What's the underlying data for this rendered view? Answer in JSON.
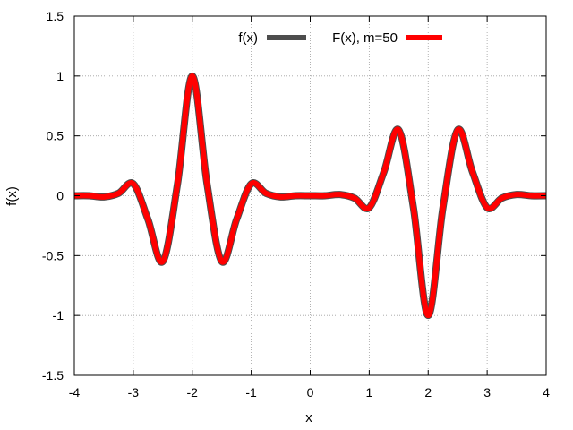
{
  "chart_data": {
    "type": "line",
    "xlabel": "x",
    "ylabel": "f(x)",
    "xlim": [
      -4,
      4
    ],
    "ylim": [
      -1.5,
      1.5
    ],
    "xticks": [
      -4,
      -3,
      -2,
      -1,
      0,
      1,
      2,
      3,
      4
    ],
    "yticks": [
      -1.5,
      -1,
      -0.5,
      0,
      0.5,
      1,
      1.5
    ],
    "xtick_labels": [
      "-4",
      "-3",
      "-2",
      "-1",
      "0",
      "1",
      "2",
      "3",
      "4"
    ],
    "ytick_labels": [
      "-1.5",
      "-1",
      "-0.5",
      "0",
      "0.5",
      "1",
      "1.5"
    ],
    "grid": true,
    "legend_position": "top-right",
    "x": [
      -4,
      -3.75,
      -3.5,
      -3.25,
      -3,
      -2.75,
      -2.5,
      -2.25,
      -2,
      -1.75,
      -1.5,
      -1.25,
      -1,
      -0.75,
      -0.5,
      -0.25,
      0,
      0.25,
      0.5,
      0.75,
      1,
      1.25,
      1.5,
      1.75,
      2,
      2.25,
      2.5,
      2.75,
      3,
      3.25,
      3.5,
      3.75,
      4
    ],
    "series": [
      {
        "name": "f(x)",
        "color": "#4d4d4d",
        "values": [
          0,
          0,
          -0.01,
          0.02,
          0.1,
          -0.2,
          -0.55,
          0.1,
          1,
          0.1,
          -0.55,
          -0.2,
          0.1,
          0.02,
          -0.01,
          0,
          0,
          0,
          0.01,
          -0.02,
          -0.1,
          0.2,
          0.55,
          -0.1,
          -1,
          -0.1,
          0.55,
          0.2,
          -0.1,
          -0.02,
          0.01,
          0,
          0
        ]
      },
      {
        "name": "F(x), m=50",
        "color": "#ff0000",
        "values": [
          0,
          0,
          -0.01,
          0.02,
          0.1,
          -0.2,
          -0.55,
          0.1,
          1,
          0.1,
          -0.55,
          -0.2,
          0.1,
          0.02,
          -0.01,
          0,
          0,
          0,
          0.01,
          -0.02,
          -0.1,
          0.2,
          0.55,
          -0.1,
          -1,
          -0.1,
          0.55,
          0.2,
          -0.1,
          -0.02,
          0.01,
          0,
          0
        ]
      }
    ]
  }
}
